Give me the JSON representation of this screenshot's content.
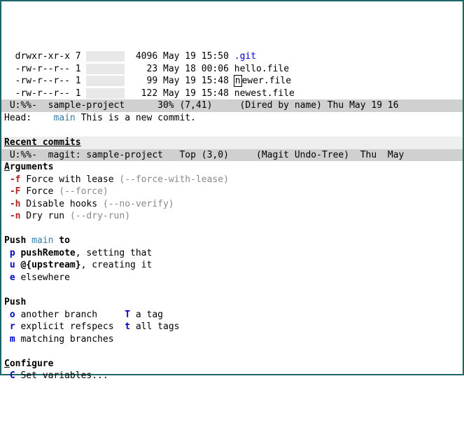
{
  "dired": {
    "rows": [
      {
        "perm": "drwxr-xr-x",
        "n": "7",
        "owner": "       ",
        "size": "4096",
        "date": "May 19 15:50",
        "name": ".git",
        "cls": "dirname"
      },
      {
        "perm": "-rw-r--r--",
        "n": "1",
        "owner": "       ",
        "size": "23",
        "date": "May 18 00:06",
        "name": "hello.file",
        "cls": ""
      },
      {
        "perm": "-rw-r--r--",
        "n": "1",
        "owner": "       ",
        "size": "99",
        "date": "May 19 15:48",
        "name": "newer.file",
        "cls": ""
      },
      {
        "perm": "-rw-r--r--",
        "n": "1",
        "owner": "       ",
        "size": "122",
        "date": "May 19 15:48",
        "name": "newest.file",
        "cls": ""
      }
    ],
    "modeline": " U:%%-  sample-project      30% (7,41)     (Dired by name) Thu May 19 16"
  },
  "magit_head": {
    "label": "Head:    ",
    "branch": "main",
    "msg": " This is a new commit."
  },
  "recent_header": "Recent commits",
  "magit_modeline": " U:%%-  magit: sample-project   Top (3,0)     (Magit Undo-Tree)  Thu  May",
  "arguments": {
    "title": "Arguments",
    "items": [
      {
        "flag": "-f",
        "text": "Force with lease",
        "arg": "--force-with-lease"
      },
      {
        "flag": "-F",
        "text": "Force",
        "arg": "--force"
      },
      {
        "flag": "-h",
        "text": "Disable hooks",
        "arg": "--no-verify"
      },
      {
        "flag": "-n",
        "text": "Dry run",
        "arg": "--dry-run"
      }
    ]
  },
  "push_main": {
    "title_pre": "Push ",
    "branch": "main",
    "title_post": " to",
    "items": [
      {
        "key": "p",
        "bold": "pushRemote",
        "rest": ", setting that"
      },
      {
        "key": "u",
        "bold": "@{upstream}",
        "rest": ", creating it"
      },
      {
        "key": "e",
        "bold": "",
        "rest": "elsewhere"
      }
    ]
  },
  "push": {
    "title": "Push",
    "left": [
      {
        "key": "o",
        "text": "another branch"
      },
      {
        "key": "r",
        "text": "explicit refspecs"
      },
      {
        "key": "m",
        "text": "matching branches"
      }
    ],
    "right": [
      {
        "key": "T",
        "text": "a tag"
      },
      {
        "key": "t",
        "text": "all tags"
      }
    ]
  },
  "configure": {
    "title": "Configure",
    "items": [
      {
        "key": "C",
        "text": "Set variables..."
      }
    ]
  }
}
